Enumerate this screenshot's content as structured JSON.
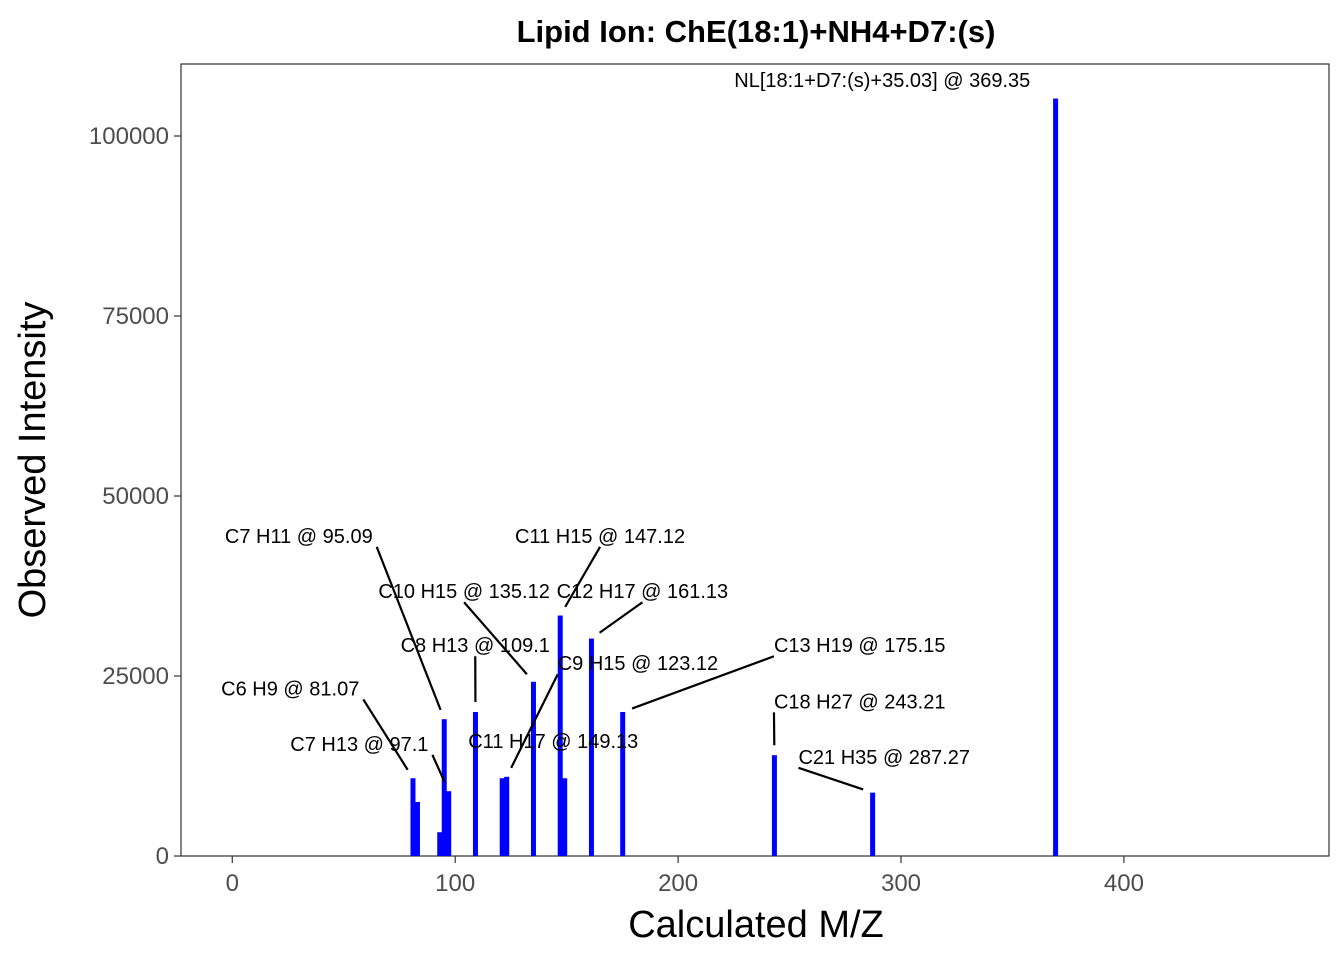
{
  "chart_data": {
    "type": "bar",
    "title": "Lipid Ion: ChE(18:1)+NH4+D7:(s)",
    "xlabel": "Calculated M/Z",
    "ylabel": "Observed Intensity",
    "xlim": [
      -23,
      492
    ],
    "ylim": [
      0,
      110000
    ],
    "x_ticks": [
      0,
      100,
      200,
      300,
      400
    ],
    "y_ticks": [
      0,
      25000,
      50000,
      75000,
      100000
    ],
    "grid": false,
    "bar_color": "#0000ff",
    "peaks": [
      {
        "mz": 81.07,
        "intensity": 10800
      },
      {
        "mz": 83.08,
        "intensity": 7500
      },
      {
        "mz": 93.07,
        "intensity": 3300
      },
      {
        "mz": 95.09,
        "intensity": 19000
      },
      {
        "mz": 97.1,
        "intensity": 9000
      },
      {
        "mz": 109.1,
        "intensity": 20000
      },
      {
        "mz": 121.1,
        "intensity": 10800
      },
      {
        "mz": 123.12,
        "intensity": 11000
      },
      {
        "mz": 135.12,
        "intensity": 24200
      },
      {
        "mz": 147.12,
        "intensity": 33400
      },
      {
        "mz": 149.13,
        "intensity": 10800
      },
      {
        "mz": 161.13,
        "intensity": 30200
      },
      {
        "mz": 175.15,
        "intensity": 20000
      },
      {
        "mz": 243.21,
        "intensity": 14000
      },
      {
        "mz": 287.27,
        "intensity": 8800
      },
      {
        "mz": 369.35,
        "intensity": 105200
      }
    ],
    "annotations": [
      {
        "text": "C6 H9 @ 81.07",
        "mz": 81.07,
        "intensity": 10800,
        "label_mz": 57,
        "label_intensity": 22300,
        "anchor": "end"
      },
      {
        "text": "C7 H11 @ 95.09",
        "mz": 95.09,
        "intensity": 19000,
        "label_mz": 63,
        "label_intensity": 43500,
        "anchor": "end"
      },
      {
        "text": "C7 H13 @ 97.1",
        "mz": 97.1,
        "intensity": 9000,
        "label_mz": 88,
        "label_intensity": 14600,
        "anchor": "end"
      },
      {
        "text": "C8 H13 @ 109.1",
        "mz": 109.1,
        "intensity": 20000,
        "label_mz": 109,
        "label_intensity": 28300,
        "anchor": "middle"
      },
      {
        "text": "C10 H15 @ 135.12",
        "mz": 135.12,
        "intensity": 24200,
        "label_mz": 104,
        "label_intensity": 35800,
        "anchor": "middle"
      },
      {
        "text": "C9 H15 @ 123.12",
        "mz": 123.12,
        "intensity": 11000,
        "label_mz": 146,
        "label_intensity": 25800,
        "anchor": "start"
      },
      {
        "text": "C11 H17 @ 149.13",
        "mz": 149.13,
        "intensity": 10800,
        "label_mz": 144,
        "label_intensity": 15000,
        "anchor": "middle"
      },
      {
        "text": "C11 H15 @ 147.12",
        "mz": 147.12,
        "intensity": 33400,
        "label_mz": 165,
        "label_intensity": 43500,
        "anchor": "middle"
      },
      {
        "text": "C12 H17 @ 161.13",
        "mz": 161.13,
        "intensity": 30200,
        "label_mz": 184,
        "label_intensity": 35800,
        "anchor": "middle"
      },
      {
        "text": "C13 H19 @ 175.15",
        "mz": 175.15,
        "intensity": 20000,
        "label_mz": 243,
        "label_intensity": 28300,
        "anchor": "start"
      },
      {
        "text": "C18 H27 @ 243.21",
        "mz": 243.21,
        "intensity": 14000,
        "label_mz": 243,
        "label_intensity": 20500,
        "anchor": "start"
      },
      {
        "text": "C21 H35 @ 287.27",
        "mz": 287.27,
        "intensity": 8800,
        "label_mz": 254,
        "label_intensity": 12800,
        "anchor": "start"
      },
      {
        "text": "NL[18:1+D7:(s)+35.03] @ 369.35",
        "mz": 369.35,
        "intensity": 105200,
        "label_mz": 358,
        "label_intensity": 106800,
        "anchor": "end"
      }
    ]
  }
}
